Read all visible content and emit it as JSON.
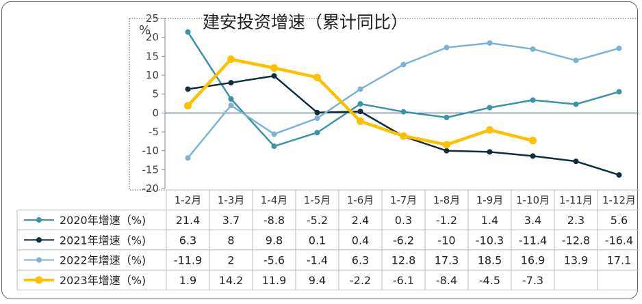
{
  "chart_data": {
    "type": "line",
    "title": "建安投资增速（累计同比）",
    "ylabel": "%",
    "ylim": [
      -20,
      25
    ],
    "yticks": [
      25,
      20,
      15,
      10,
      5,
      0,
      -5,
      -10,
      -15,
      -20
    ],
    "categories": [
      "1-2月",
      "1-3月",
      "1-4月",
      "1-5月",
      "1-6月",
      "1-7月",
      "1-8月",
      "1-9月",
      "1-10月",
      "1-11月",
      "1-12月"
    ],
    "series": [
      {
        "name": "2020年增速（%)",
        "color": "#3a93a6",
        "width": 2,
        "radius": 4,
        "values": [
          21.4,
          3.7,
          -8.8,
          -5.2,
          2.4,
          0.3,
          -1.2,
          1.4,
          3.4,
          2.3,
          5.6
        ]
      },
      {
        "name": "2021年增速（%)",
        "color": "#0f2d3f",
        "width": 2,
        "radius": 4,
        "values": [
          6.3,
          8,
          9.8,
          0.1,
          0.4,
          -6.2,
          -10,
          -10.3,
          -11.4,
          -12.8,
          -16.4
        ]
      },
      {
        "name": "2022年增速（%)",
        "color": "#7ab3d6",
        "width": 2,
        "radius": 4,
        "values": [
          -11.9,
          2,
          -5.6,
          -1.4,
          6.3,
          12.8,
          17.3,
          18.5,
          16.9,
          13.9,
          17.1
        ]
      },
      {
        "name": "2023年增速（%)",
        "color": "#ffc000",
        "width": 4,
        "radius": 5.5,
        "values": [
          1.9,
          14.2,
          11.9,
          9.4,
          -2.2,
          -6.1,
          -8.4,
          -4.5,
          -7.3,
          null,
          null
        ]
      }
    ],
    "table": [
      [
        "21.4",
        "3.7",
        "-8.8",
        "-5.2",
        "2.4",
        "0.3",
        "-1.2",
        "1.4",
        "3.4",
        "2.3",
        "5.6"
      ],
      [
        "6.3",
        "8",
        "9.8",
        "0.1",
        "0.4",
        "-6.2",
        "-10",
        "-10.3",
        "-11.4",
        "-12.8",
        "-16.4"
      ],
      [
        "-11.9",
        "2",
        "-5.6",
        "-1.4",
        "6.3",
        "12.8",
        "17.3",
        "18.5",
        "16.9",
        "13.9",
        "17.1"
      ],
      [
        "1.9",
        "14.2",
        "11.9",
        "9.4",
        "-2.2",
        "-6.1",
        "-8.4",
        "-4.5",
        "-7.3",
        "",
        ""
      ]
    ],
    "grid": false,
    "legend": "data-table"
  }
}
